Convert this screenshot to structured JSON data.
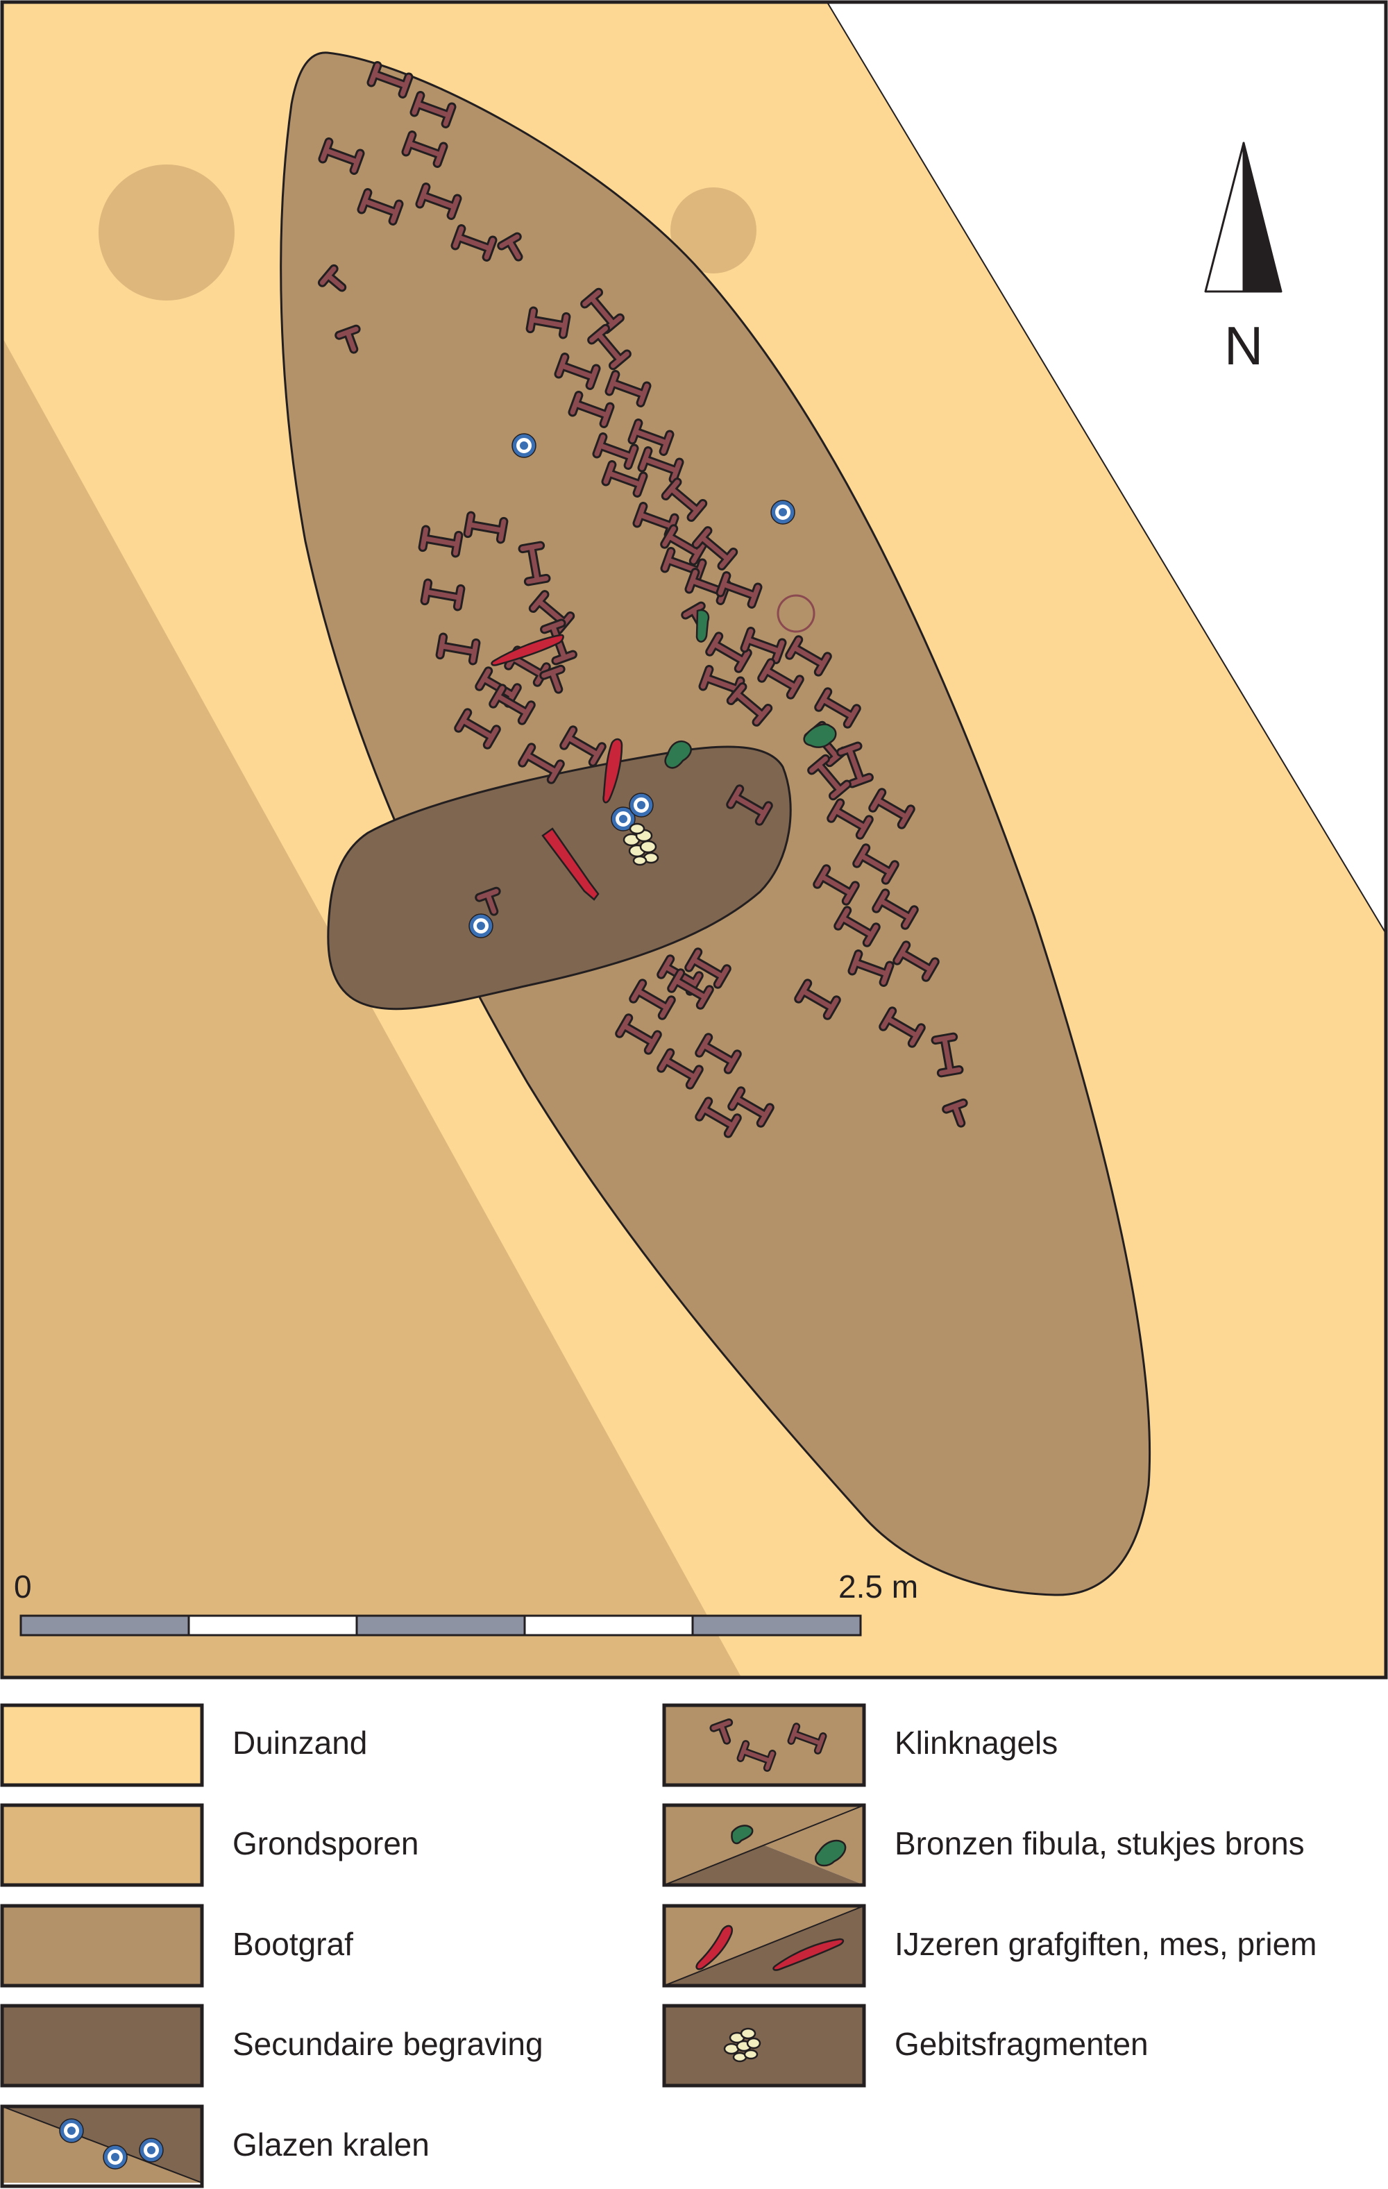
{
  "map": {
    "north_label": "N",
    "scale": {
      "start_label": "0",
      "end_label": "2.5 m"
    }
  },
  "colors": {
    "duinzand": "#fcd894",
    "grondsporen": "#deb77c",
    "bootgraf": "#b3926a",
    "secundaire": "#7f6650",
    "klinknagel": "#8a4a50",
    "brons": "#2f7a50",
    "ijzer": "#c8243a",
    "kraal": "#3a6fb4",
    "gebit": "#f2eec0",
    "outline": "#231f20",
    "scale_grey": "#8d93a3"
  },
  "legend": {
    "items": [
      {
        "key": "duinzand",
        "label": "Duinzand"
      },
      {
        "key": "grondsporen",
        "label": "Grondsporen"
      },
      {
        "key": "bootgraf",
        "label": "Bootgraf"
      },
      {
        "key": "secundaire",
        "label": "Secundaire begraving"
      },
      {
        "key": "kralen",
        "label": "Glazen kralen"
      },
      {
        "key": "klinknagels",
        "label": "Klinknagels"
      },
      {
        "key": "brons",
        "label": "Bronzen fibula, stukjes brons"
      },
      {
        "key": "ijzer",
        "label": "IJzeren grafgiften, mes, priem"
      },
      {
        "key": "gebit",
        "label": "Gebitsfragmenten"
      }
    ]
  }
}
